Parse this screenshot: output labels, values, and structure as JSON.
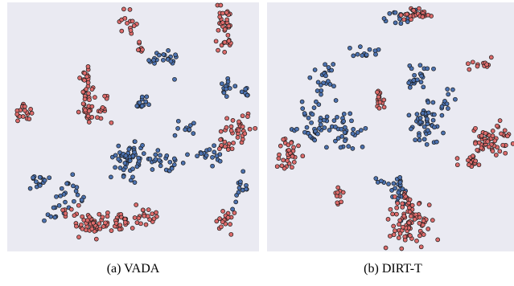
{
  "colors": {
    "background": "#eaeaf2",
    "blue": "#4c72b0",
    "red": "#dd6b6b",
    "outline": "#1a1a1a"
  },
  "chart_data": [
    {
      "type": "scatter",
      "caption": "(a) VADA",
      "xlim": [
        0,
        100
      ],
      "ylim": [
        0,
        100
      ],
      "grid": false,
      "series": [
        {
          "color": "blue",
          "clusters": [
            {
              "cx": 12,
              "cy": 28.5,
              "sx": 2.5,
              "sy": 1.8,
              "n": 14
            },
            {
              "cx": 62,
              "cy": 77,
              "sx": 4,
              "sy": 1.5,
              "n": 20
            },
            {
              "cx": 66,
              "cy": 69,
              "sx": 0.5,
              "sy": 0.5,
              "n": 1
            },
            {
              "cx": 53.5,
              "cy": 59.5,
              "sx": 2.3,
              "sy": 1.5,
              "n": 12
            },
            {
              "cx": 71,
              "cy": 51,
              "sx": 2.2,
              "sy": 1.6,
              "n": 10
            },
            {
              "cx": 87,
              "cy": 66,
              "sx": 1.5,
              "sy": 2.5,
              "n": 12
            },
            {
              "cx": 95,
              "cy": 64,
              "sx": 1.3,
              "sy": 1.5,
              "n": 7
            },
            {
              "cx": 49,
              "cy": 37,
              "sx": 3,
              "sy": 3.5,
              "n": 55
            },
            {
              "cx": 62,
              "cy": 36.5,
              "sx": 4,
              "sy": 1.5,
              "n": 24
            },
            {
              "cx": 78,
              "cy": 39,
              "sx": 4,
              "sy": 1.5,
              "n": 18
            },
            {
              "cx": 25,
              "cy": 22,
              "sx": 2.5,
              "sy": 3.5,
              "n": 20
            },
            {
              "cx": 17,
              "cy": 14.5,
              "sx": 2.5,
              "sy": 1.5,
              "n": 8
            },
            {
              "cx": 93,
              "cy": 25,
              "sx": 1.8,
              "sy": 2.8,
              "n": 14
            }
          ]
        },
        {
          "color": "red",
          "clusters": [
            {
              "cx": 48.5,
              "cy": 91,
              "sx": 2.8,
              "sy": 2.8,
              "n": 14
            },
            {
              "cx": 53,
              "cy": 81.5,
              "sx": 1,
              "sy": 2,
              "n": 8
            },
            {
              "cx": 86,
              "cy": 90,
              "sx": 1.8,
              "sy": 4.5,
              "n": 32
            },
            {
              "cx": 87.5,
              "cy": 82,
              "sx": 0.8,
              "sy": 1.5,
              "n": 5
            },
            {
              "cx": 6.5,
              "cy": 56.5,
              "sx": 1.5,
              "sy": 2.2,
              "n": 18
            },
            {
              "cx": 32,
              "cy": 68,
              "sx": 2,
              "sy": 3.5,
              "n": 20
            },
            {
              "cx": 32,
              "cy": 58,
              "sx": 2.5,
              "sy": 3,
              "n": 26
            },
            {
              "cx": 38.5,
              "cy": 57.5,
              "sx": 1.5,
              "sy": 3,
              "n": 12
            },
            {
              "cx": 92,
              "cy": 49,
              "sx": 3,
              "sy": 3,
              "n": 30
            },
            {
              "cx": 85.5,
              "cy": 42.5,
              "sx": 2,
              "sy": 1.5,
              "n": 10
            },
            {
              "cx": 34,
              "cy": 11.5,
              "sx": 3,
              "sy": 2.5,
              "n": 40
            },
            {
              "cx": 45,
              "cy": 11.5,
              "sx": 5,
              "sy": 1.5,
              "n": 32
            },
            {
              "cx": 56,
              "cy": 15,
              "sx": 2.5,
              "sy": 2,
              "n": 14
            },
            {
              "cx": 24,
              "cy": 16,
              "sx": 2,
              "sy": 1.5,
              "n": 8
            },
            {
              "cx": 86,
              "cy": 13,
              "sx": 1.8,
              "sy": 2.8,
              "n": 18
            }
          ]
        }
      ]
    },
    {
      "type": "scatter",
      "caption": "(b) DIRT-T",
      "xlim": [
        0,
        100
      ],
      "ylim": [
        0,
        100
      ],
      "grid": false,
      "series": [
        {
          "color": "blue",
          "clusters": [
            {
              "cx": 52,
              "cy": 94.5,
              "sx": 3.5,
              "sy": 1.5,
              "n": 14
            },
            {
              "cx": 38.5,
              "cy": 80,
              "sx": 2.5,
              "sy": 2,
              "n": 12
            },
            {
              "cx": 23,
              "cy": 70,
              "sx": 2.5,
              "sy": 3,
              "n": 22
            },
            {
              "cx": 20,
              "cy": 51,
              "sx": 3.5,
              "sy": 4,
              "n": 42
            },
            {
              "cx": 31,
              "cy": 48,
              "sx": 3.5,
              "sy": 4,
              "n": 30
            },
            {
              "cx": 60,
              "cy": 70,
              "sx": 2.5,
              "sy": 2.5,
              "n": 22
            },
            {
              "cx": 63.5,
              "cy": 52,
              "sx": 3.5,
              "sy": 5,
              "n": 50
            },
            {
              "cx": 72,
              "cy": 61,
              "sx": 1.5,
              "sy": 2,
              "n": 8
            },
            {
              "cx": 51.5,
              "cy": 26,
              "sx": 2,
              "sy": 4.5,
              "n": 24
            },
            {
              "cx": 44,
              "cy": 28.5,
              "sx": 0.8,
              "sy": 1,
              "n": 3
            }
          ]
        },
        {
          "color": "red",
          "clusters": [
            {
              "cx": 58.5,
              "cy": 95.5,
              "sx": 3.5,
              "sy": 1.2,
              "n": 26
            },
            {
              "cx": 84,
              "cy": 75.5,
              "sx": 2.5,
              "sy": 1,
              "n": 12
            },
            {
              "cx": 44.5,
              "cy": 61,
              "sx": 1,
              "sy": 3,
              "n": 16
            },
            {
              "cx": 89,
              "cy": 44.5,
              "sx": 4,
              "sy": 3.5,
              "n": 55
            },
            {
              "cx": 81,
              "cy": 36.5,
              "sx": 2,
              "sy": 1.5,
              "n": 14
            },
            {
              "cx": 8.5,
              "cy": 39.5,
              "sx": 1.8,
              "sy": 3.5,
              "n": 30
            },
            {
              "cx": 28.5,
              "cy": 22.5,
              "sx": 0.8,
              "sy": 2.5,
              "n": 10
            },
            {
              "cx": 55.5,
              "cy": 20,
              "sx": 2.5,
              "sy": 2,
              "n": 16
            },
            {
              "cx": 57.5,
              "cy": 11,
              "sx": 5,
              "sy": 4.5,
              "n": 75
            }
          ]
        }
      ]
    }
  ]
}
